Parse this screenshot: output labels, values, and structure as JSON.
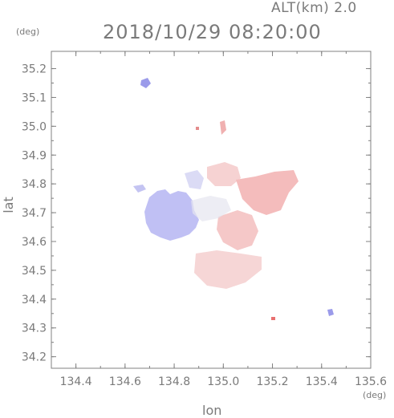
{
  "header": {
    "altitude_label": "ALT(km) 2.0",
    "timestamp": "2018/10/29 08:20:00",
    "y_unit": "(deg)",
    "x_unit": "(deg)"
  },
  "axes": {
    "xlabel": "lon",
    "ylabel": "lat",
    "xlim": [
      134.3,
      135.6
    ],
    "ylim": [
      34.16,
      35.26
    ],
    "xticks": [
      "134.4",
      "134.6",
      "134.8",
      "135.0",
      "135.2",
      "135.4",
      "135.6"
    ],
    "yticks": [
      "34.2",
      "34.3",
      "34.4",
      "34.5",
      "34.6",
      "34.7",
      "34.8",
      "34.9",
      "35.0",
      "35.1",
      "35.2"
    ]
  },
  "colors": {
    "negative": "#b8b8f2",
    "positive": "#f4c2c2",
    "frame": "#808080"
  }
}
